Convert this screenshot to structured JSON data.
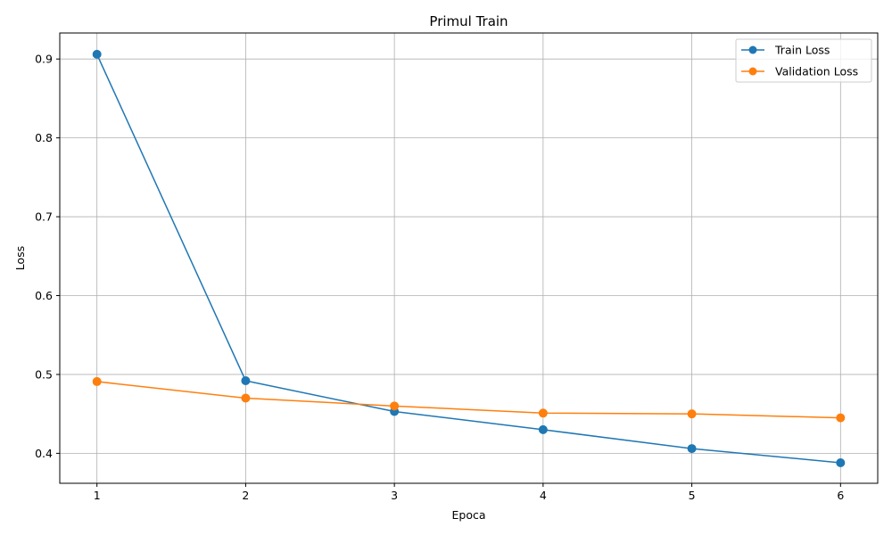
{
  "chart_data": {
    "type": "line",
    "title": "Primul Train",
    "xlabel": "Epoca",
    "ylabel": "Loss",
    "x": [
      1,
      2,
      3,
      4,
      5,
      6
    ],
    "xticks": [
      "1",
      "2",
      "3",
      "4",
      "5",
      "6"
    ],
    "yticks": [
      "0.4",
      "0.5",
      "0.6",
      "0.7",
      "0.8",
      "0.9"
    ],
    "xlim": [
      0.75,
      6.25
    ],
    "ylim": [
      0.362,
      0.933
    ],
    "grid": true,
    "legend_position": "top-right",
    "series": [
      {
        "name": "Train Loss",
        "color": "#1f77b4",
        "marker": "circle",
        "values": [
          0.906,
          0.492,
          0.453,
          0.43,
          0.406,
          0.388
        ]
      },
      {
        "name": "Validation Loss",
        "color": "#ff7f0e",
        "marker": "circle",
        "values": [
          0.491,
          0.47,
          0.46,
          0.451,
          0.45,
          0.445
        ]
      }
    ]
  }
}
